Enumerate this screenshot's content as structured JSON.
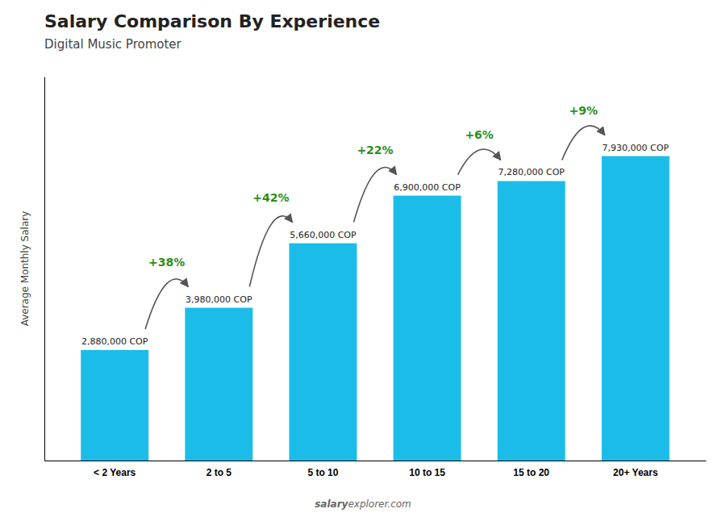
{
  "chart_data": {
    "type": "bar",
    "title": "Salary Comparison By Experience",
    "subtitle": "Digital Music Promoter",
    "y_label": "Average Monthly Salary",
    "categories": [
      "< 2 Years",
      "2 to 5",
      "5 to 10",
      "10 to 15",
      "15 to 20",
      "20+ Years"
    ],
    "values": [
      2880000,
      3980000,
      5660000,
      6900000,
      7280000,
      7930000
    ],
    "value_labels": [
      "2,880,000 COP",
      "3,980,000 COP",
      "5,660,000 COP",
      "6,900,000 COP",
      "7,280,000 COP",
      "7,930,000 COP"
    ],
    "data_labels": true,
    "annotations": [
      "+38%",
      "+42%",
      "+22%",
      "+6%",
      "+9%"
    ],
    "watermark": [
      "salary",
      "explorer.com"
    ],
    "color": "#1BBDE8",
    "ylim": [
      0,
      10000000
    ],
    "tick_labels": "x",
    "grid": false
  }
}
